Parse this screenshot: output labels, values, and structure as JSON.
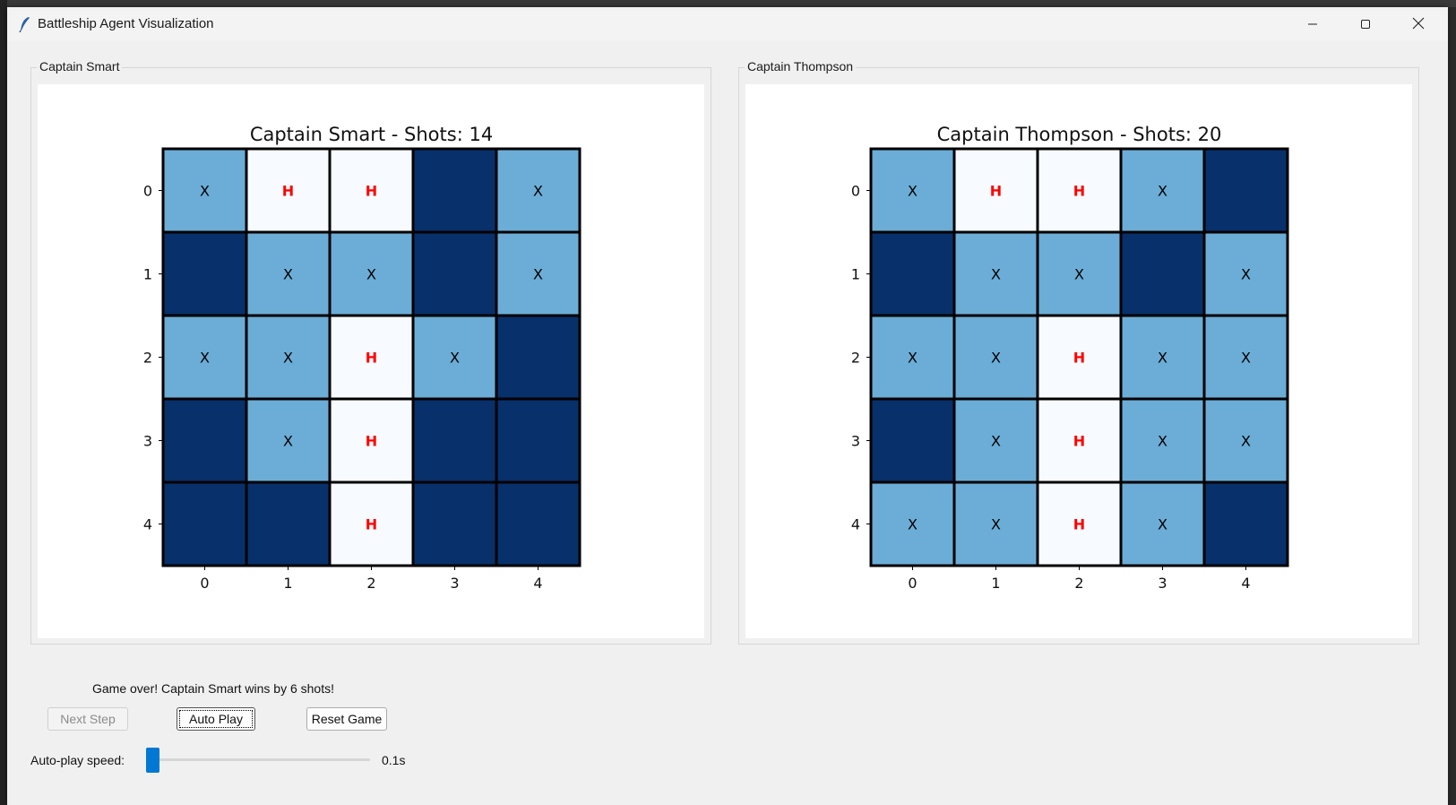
{
  "window": {
    "title": "Battleship Agent Visualization",
    "icons": {
      "app": "feather-icon",
      "minimize": "minimize-icon",
      "maximize": "maximize-icon",
      "close": "close-icon"
    }
  },
  "panels": [
    {
      "label": "Captain Smart",
      "chart_data": {
        "type": "heatmap",
        "title": "Captain Smart - Shots: 14",
        "x_ticks": [
          "0",
          "1",
          "2",
          "3",
          "4"
        ],
        "y_ticks": [
          "0",
          "1",
          "2",
          "3",
          "4"
        ],
        "grid": [
          [
            "miss",
            "hit",
            "hit",
            "unknown",
            "miss"
          ],
          [
            "unknown",
            "miss",
            "miss",
            "unknown",
            "miss"
          ],
          [
            "miss",
            "miss",
            "hit",
            "miss",
            "unknown"
          ],
          [
            "unknown",
            "miss",
            "hit",
            "unknown",
            "unknown"
          ],
          [
            "unknown",
            "unknown",
            "hit",
            "unknown",
            "unknown"
          ]
        ],
        "cell_colors": {
          "miss": "#6badd6",
          "hit": "#f7fbff",
          "unknown": "#08306b"
        },
        "markers": {
          "miss": "X",
          "hit": "H"
        },
        "marker_colors": {
          "miss": "#000000",
          "hit": "#ff0000"
        }
      }
    },
    {
      "label": "Captain Thompson",
      "chart_data": {
        "type": "heatmap",
        "title": "Captain Thompson - Shots: 20",
        "x_ticks": [
          "0",
          "1",
          "2",
          "3",
          "4"
        ],
        "y_ticks": [
          "0",
          "1",
          "2",
          "3",
          "4"
        ],
        "grid": [
          [
            "miss",
            "hit",
            "hit",
            "miss",
            "unknown"
          ],
          [
            "unknown",
            "miss",
            "miss",
            "unknown",
            "miss"
          ],
          [
            "miss",
            "miss",
            "hit",
            "miss",
            "miss"
          ],
          [
            "unknown",
            "miss",
            "hit",
            "miss",
            "miss"
          ],
          [
            "miss",
            "miss",
            "hit",
            "miss",
            "unknown"
          ]
        ],
        "cell_colors": {
          "miss": "#6badd6",
          "hit": "#f7fbff",
          "unknown": "#08306b"
        },
        "markers": {
          "miss": "X",
          "hit": "H"
        },
        "marker_colors": {
          "miss": "#000000",
          "hit": "#ff0000"
        }
      }
    }
  ],
  "controls": {
    "status": "Game over! Captain Smart wins by 6 shots!",
    "next_step_label": "Next Step",
    "auto_play_label": "Auto Play",
    "reset_label": "Reset Game",
    "speed_label": "Auto-play speed:",
    "speed_value": "0.1s",
    "speed_fraction": 0.0,
    "accent": "#0078d4"
  }
}
